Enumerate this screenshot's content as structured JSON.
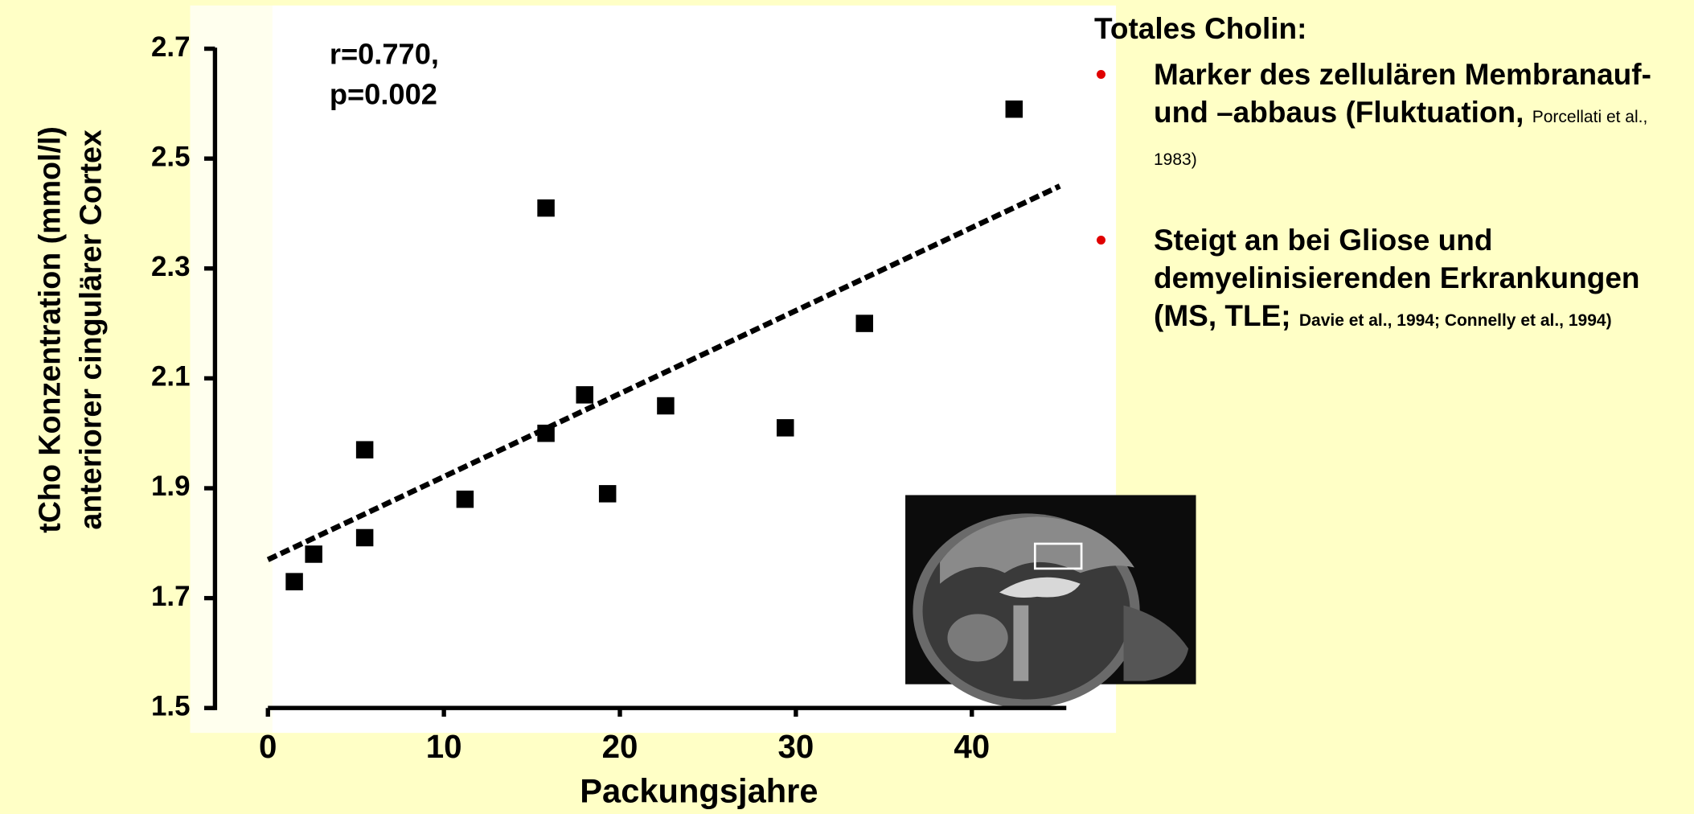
{
  "chart_data": {
    "type": "scatter",
    "y_label_lines": [
      "tCho Konzentration (mmol/l)",
      "anteriorer cingulärer Cortex"
    ],
    "x_label": "Packungsjahre",
    "annotation_lines": [
      "r=0.770,",
      "p=0.002"
    ],
    "x": [
      1.5,
      2.6,
      5.5,
      5.5,
      11.2,
      15.8,
      15.8,
      18.0,
      19.3,
      22.6,
      29.4,
      33.9,
      42.4
    ],
    "values": [
      1.73,
      1.78,
      1.81,
      1.97,
      1.88,
      2.41,
      2.0,
      2.07,
      1.89,
      2.05,
      2.01,
      2.2,
      2.59
    ],
    "color": "#000000",
    "trend": {
      "x": [
        0,
        45
      ],
      "y": [
        1.77,
        2.45
      ],
      "color": "#000000"
    },
    "xlim": [
      0,
      45
    ],
    "ylim": [
      1.5,
      2.7
    ],
    "xticks": [
      0,
      10,
      20,
      30,
      40
    ],
    "yticks": [
      1.5,
      1.7,
      1.9,
      2.1,
      2.3,
      2.5,
      2.7
    ]
  },
  "notes": {
    "heading": "Totales Cholin:",
    "bullets": [
      {
        "text": "Marker des zellulären Membranauf- und –abbaus (Fluktuation,",
        "ref": "Porcellati et al., 1983)"
      },
      {
        "text": "Steigt an bei Gliose und demyelinisierenden Erkrankungen (MS, TLE;",
        "ref": "Davie et al., 1994; Connelly et al., 1994)"
      }
    ]
  }
}
